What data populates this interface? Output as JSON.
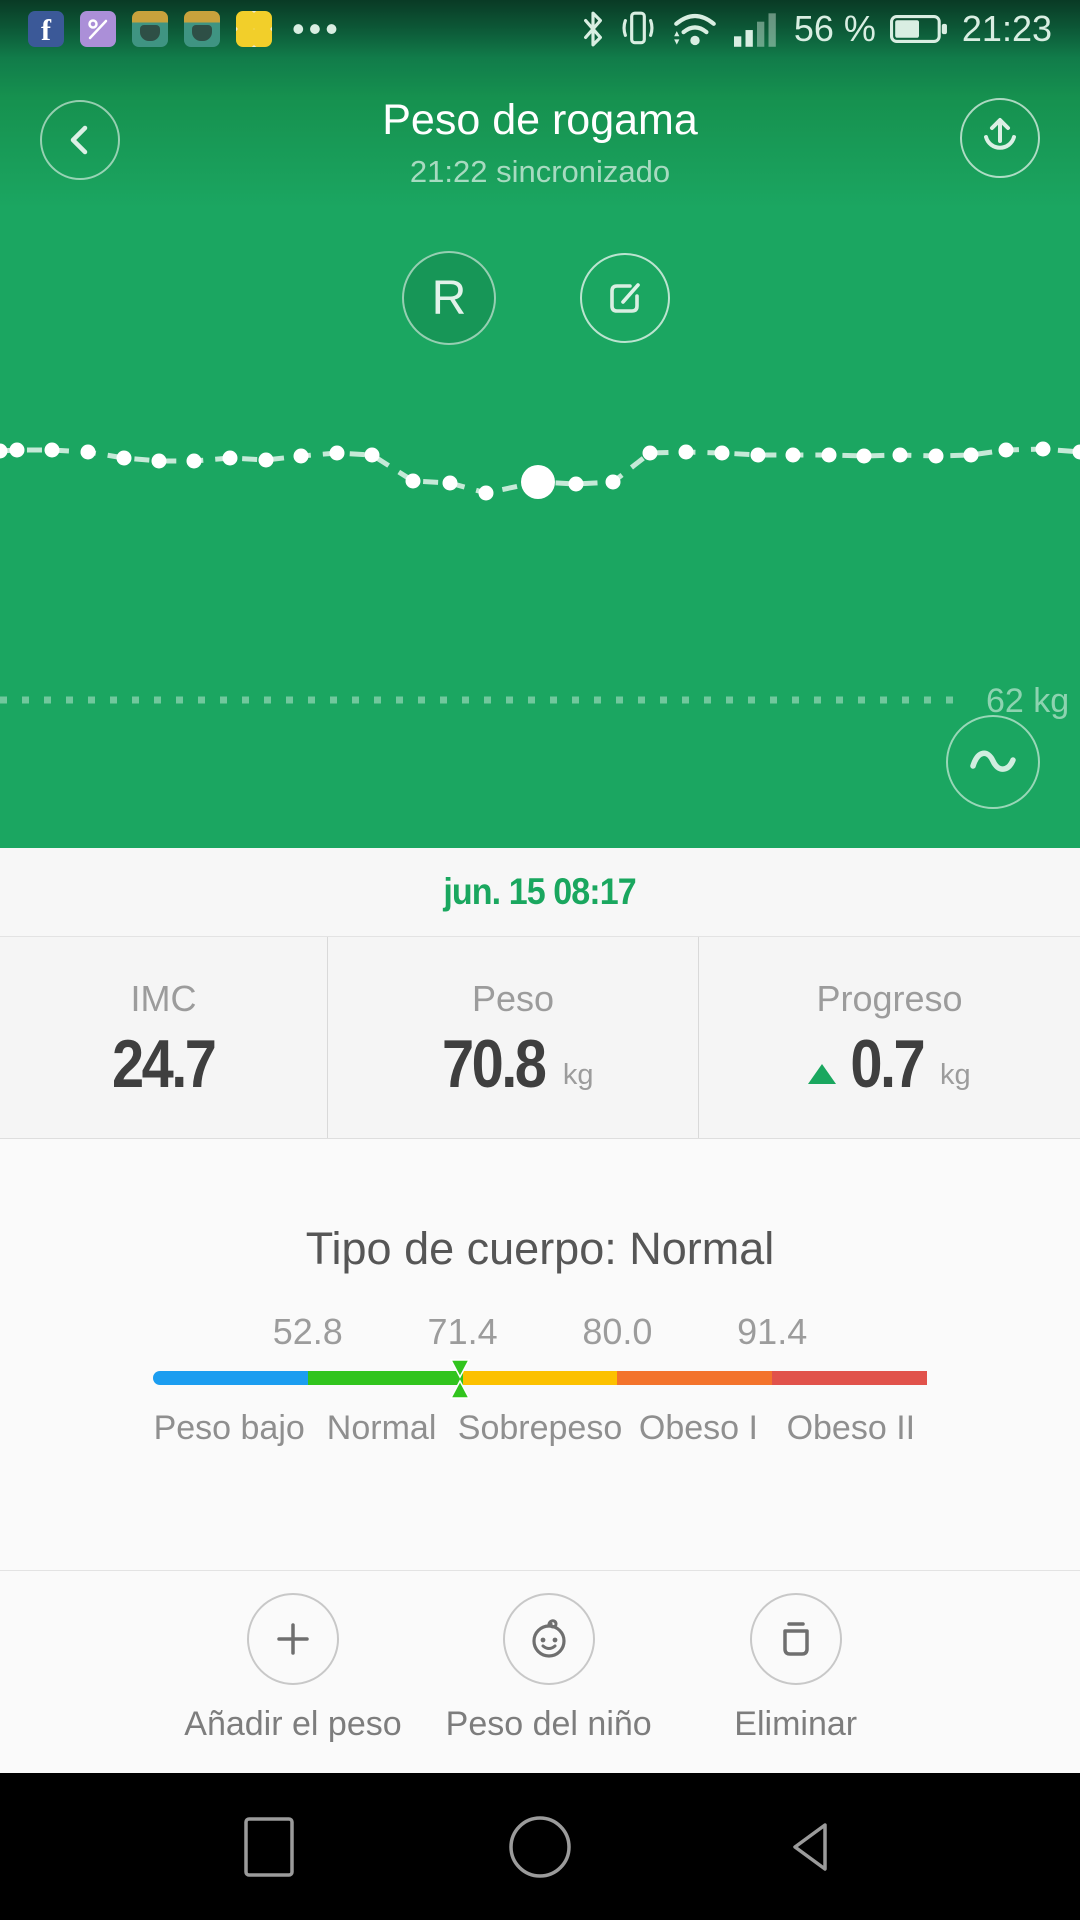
{
  "status_bar": {
    "time": "21:23",
    "battery_percent": "56 %",
    "more": "•••",
    "notification_icons": [
      "facebook",
      "gallery",
      "clash-royale",
      "clash-royale",
      "pikachu"
    ]
  },
  "header": {
    "title": "Peso de rogama",
    "subtitle": "21:22 sincronizado",
    "r_button_label": "R"
  },
  "chart": {
    "goal_label": "62 kg",
    "selected_index": 15,
    "dot_color": "#ffffff",
    "line_color": "rgba(255,255,255,0.75)",
    "points": [
      [
        0,
        393
      ],
      [
        17,
        392
      ],
      [
        52,
        392
      ],
      [
        88,
        394
      ],
      [
        124,
        400
      ],
      [
        159,
        403
      ],
      [
        194,
        403
      ],
      [
        230,
        400
      ],
      [
        266,
        402
      ],
      [
        301,
        398
      ],
      [
        337,
        395
      ],
      [
        372,
        397
      ],
      [
        413,
        423
      ],
      [
        450,
        425
      ],
      [
        486,
        435
      ],
      [
        538,
        424
      ],
      [
        576,
        426
      ],
      [
        613,
        424
      ],
      [
        650,
        395
      ],
      [
        686,
        394
      ],
      [
        722,
        395
      ],
      [
        758,
        397
      ],
      [
        793,
        397
      ],
      [
        829,
        397
      ],
      [
        864,
        398
      ],
      [
        900,
        397
      ],
      [
        936,
        398
      ],
      [
        971,
        397
      ],
      [
        1006,
        392
      ],
      [
        1043,
        391
      ],
      [
        1080,
        394
      ]
    ]
  },
  "record": {
    "datetime": "jun. 15 08:17"
  },
  "stats": [
    {
      "label": "IMC",
      "value": "24.7",
      "unit": ""
    },
    {
      "label": "Peso",
      "value": "70.8",
      "unit": "kg"
    },
    {
      "label": "Progreso",
      "value": "0.7",
      "unit": "kg",
      "trend": "up"
    }
  ],
  "body_type": {
    "title": "Tipo de cuerpo: Normal",
    "thresholds": [
      "52.8",
      "71.4",
      "80.0",
      "91.4"
    ],
    "segments": [
      {
        "label": "Peso bajo",
        "color": "#1b9df0"
      },
      {
        "label": "Normal",
        "color": "#31c41d"
      },
      {
        "label": "Sobrepeso",
        "color": "#fcc100"
      },
      {
        "label": "Obeso I",
        "color": "#f3732c"
      },
      {
        "label": "Obeso II",
        "color": "#e1524b"
      }
    ],
    "marker_position_pct": 39.6,
    "marker_color": "#31c41d"
  },
  "actions": [
    {
      "label": "Añadir el peso",
      "icon": "plus"
    },
    {
      "label": "Peso del niño",
      "icon": "baby"
    },
    {
      "label": "Eliminar",
      "icon": "trash"
    }
  ]
}
